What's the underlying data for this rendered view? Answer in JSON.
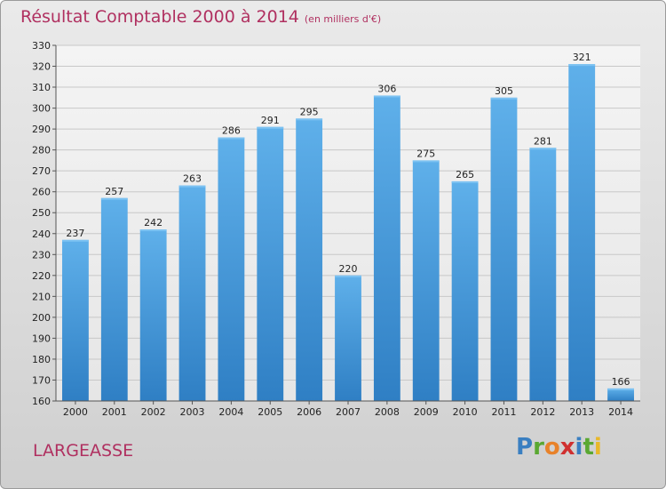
{
  "header": {
    "title": "Résultat Comptable 2000 à 2014",
    "subtitle": "(en milliers d'€)"
  },
  "footer": {
    "city": "LARGEASSE",
    "logo": {
      "text": "Proxiti",
      "letters": [
        {
          "char": "P",
          "color": "#3a7fc1"
        },
        {
          "char": "r",
          "color": "#5aa832"
        },
        {
          "char": "o",
          "color": "#e8822a"
        },
        {
          "char": "x",
          "color": "#d03030"
        },
        {
          "char": "i",
          "color": "#3a7fc1"
        },
        {
          "char": "t",
          "color": "#5aa832"
        },
        {
          "char": "i",
          "color": "#e8b82a"
        }
      ]
    }
  },
  "chart_data": {
    "type": "bar",
    "title": "Résultat Comptable 2000 à 2014",
    "subtitle": "(en milliers d'€)",
    "categories": [
      "2000",
      "2001",
      "2002",
      "2003",
      "2004",
      "2005",
      "2006",
      "2007",
      "2008",
      "2009",
      "2010",
      "2011",
      "2012",
      "2013",
      "2014"
    ],
    "values": [
      237,
      257,
      242,
      263,
      286,
      291,
      295,
      220,
      306,
      275,
      265,
      305,
      281,
      321,
      166
    ],
    "ylim": [
      160,
      330
    ],
    "ytick_step": 10,
    "grid": true,
    "bar_color": "#4a9ee0",
    "bar_color_dark": "#2f7fc4",
    "text_color": "#222222"
  }
}
